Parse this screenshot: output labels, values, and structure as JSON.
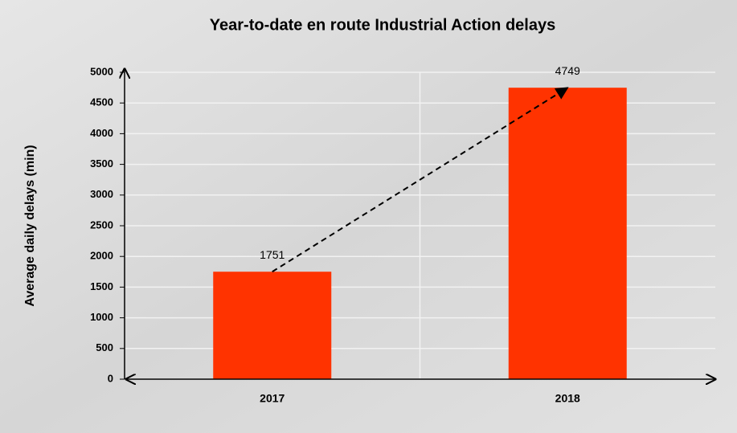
{
  "chart_data": {
    "type": "bar",
    "title": "Year-to-date en route Industrial Action delays",
    "y_label": "Average daily  delays (min)",
    "categories": [
      "2017",
      "2018"
    ],
    "values": [
      1751,
      4749
    ],
    "color": "#ff3300",
    "ylim": [
      0,
      5000
    ],
    "yticks": [
      0,
      500,
      1000,
      1500,
      2000,
      2500,
      3000,
      3500,
      4000,
      4500,
      5000
    ],
    "grid": true
  }
}
